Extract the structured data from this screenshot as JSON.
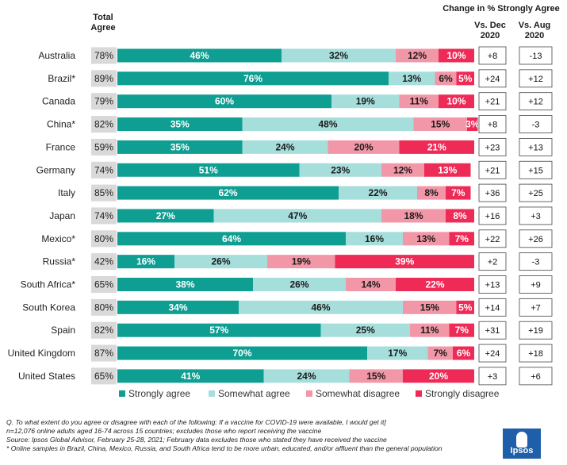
{
  "headers": {
    "total_agree": "Total Agree",
    "change_title": "Change in % Strongly Agree",
    "vs_dec": "Vs. Dec 2020",
    "vs_aug": "Vs. Aug 2020"
  },
  "colors": {
    "strongly_agree": "#0e9e92",
    "somewhat_agree": "#a6dedc",
    "somewhat_disagree": "#f297a7",
    "strongly_disagree": "#ee2b57",
    "total_bg": "#d9d9d9"
  },
  "chart_data": {
    "type": "bar",
    "orientation": "horizontal",
    "stacked": true,
    "categories": [
      "Australia",
      "Brazil*",
      "Canada",
      "China*",
      "France",
      "Germany",
      "Italy",
      "Japan",
      "Mexico*",
      "Russia*",
      "South Africa*",
      "South Korea",
      "Spain",
      "United Kingdom",
      "United States"
    ],
    "series": [
      {
        "name": "Strongly agree",
        "color": "#0e9e92",
        "values": [
          46,
          76,
          60,
          35,
          35,
          51,
          62,
          27,
          64,
          16,
          38,
          34,
          57,
          70,
          41
        ]
      },
      {
        "name": "Somewhat agree",
        "color": "#a6dedc",
        "values": [
          32,
          13,
          19,
          48,
          24,
          23,
          22,
          47,
          16,
          26,
          26,
          46,
          25,
          17,
          24
        ]
      },
      {
        "name": "Somewhat disagree",
        "color": "#f297a7",
        "values": [
          12,
          6,
          11,
          15,
          20,
          12,
          8,
          18,
          13,
          19,
          14,
          15,
          11,
          7,
          15
        ]
      },
      {
        "name": "Strongly disagree",
        "color": "#ee2b57",
        "values": [
          10,
          5,
          10,
          3,
          21,
          13,
          7,
          8,
          7,
          39,
          22,
          5,
          7,
          6,
          20
        ]
      }
    ],
    "total_agree": [
      "78%",
      "89%",
      "79%",
      "82%",
      "59%",
      "74%",
      "85%",
      "74%",
      "80%",
      "42%",
      "65%",
      "80%",
      "82%",
      "87%",
      "65%"
    ],
    "change_vs_dec_2020": [
      "+8",
      "+24",
      "+21",
      "+8",
      "+23",
      "+21",
      "+36",
      "+16",
      "+22",
      "+2",
      "+13",
      "+14",
      "+31",
      "+24",
      "+3"
    ],
    "change_vs_aug_2020": [
      "-13",
      "+12",
      "+12",
      "-3",
      "+13",
      "+15",
      "+25",
      "+3",
      "+26",
      "-3",
      "+9",
      "+7",
      "+19",
      "+18",
      "+6"
    ],
    "legend": [
      "Strongly agree",
      "Somewhat agree",
      "Somewhat disagree",
      "Strongly disagree"
    ],
    "legend_placement": "bottom"
  },
  "footnotes": [
    "Q. To what extent do you agree or disagree with each of the following: If a vaccine for COVID-19 were available, I would get it]",
    "n=12,076 online adults aged 16-74 across 15 countries; excludes those who report receiving the vaccine",
    "Source: Ipsos Global Advisor, February 25-28, 2021; February data excludes those who stated they have received the vaccine",
    "* Online samples in Brazil, China, Mexico, Russia, and South Africa tend to be more urban, educated, and/or affluent than the general population"
  ],
  "logo": {
    "text": "Ipsos"
  }
}
